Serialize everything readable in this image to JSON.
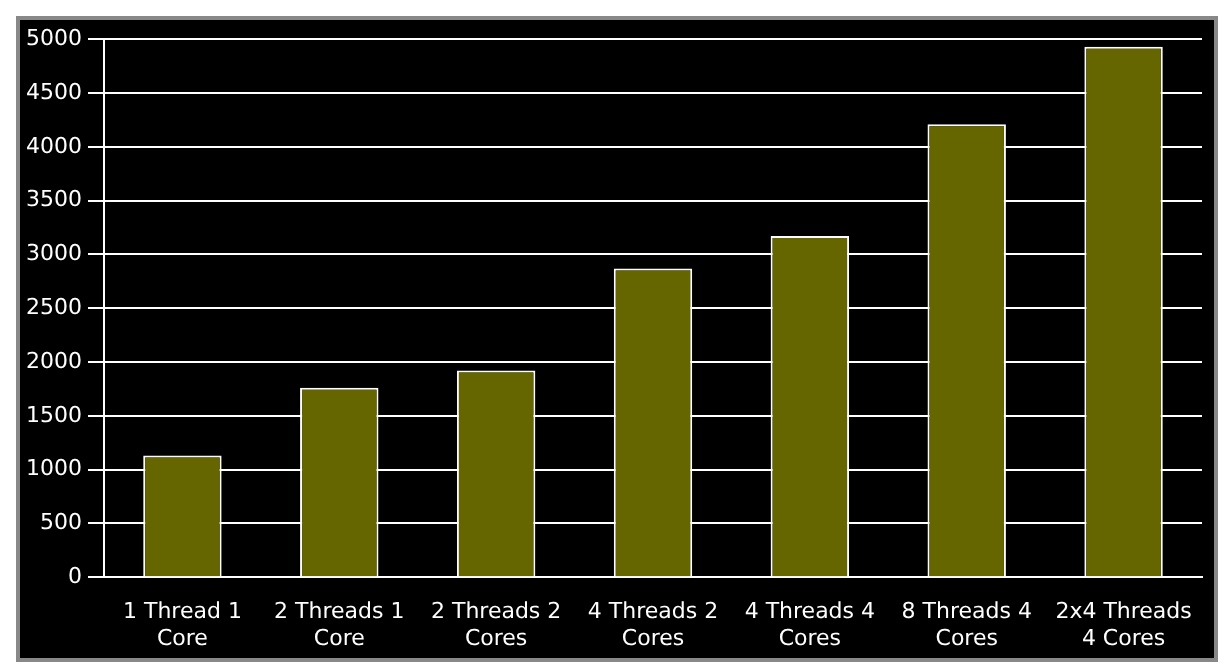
{
  "chart_data": {
    "type": "bar",
    "categories": [
      "1 Thread 1 Core",
      "2 Threads 1 Core",
      "2 Threads 2 Cores",
      "4 Threads 2 Cores",
      "4 Threads 4 Cores",
      "8 Threads 4 Cores",
      "2x4 Threads 4 Cores"
    ],
    "values": [
      1130,
      1760,
      1920,
      2870,
      3170,
      4210,
      4930
    ],
    "color": "#666600",
    "ylim": [
      0,
      5000
    ],
    "yticks": [
      0,
      500,
      1000,
      1500,
      2000,
      2500,
      3000,
      3500,
      4000,
      4500,
      5000
    ],
    "grid": "y"
  }
}
